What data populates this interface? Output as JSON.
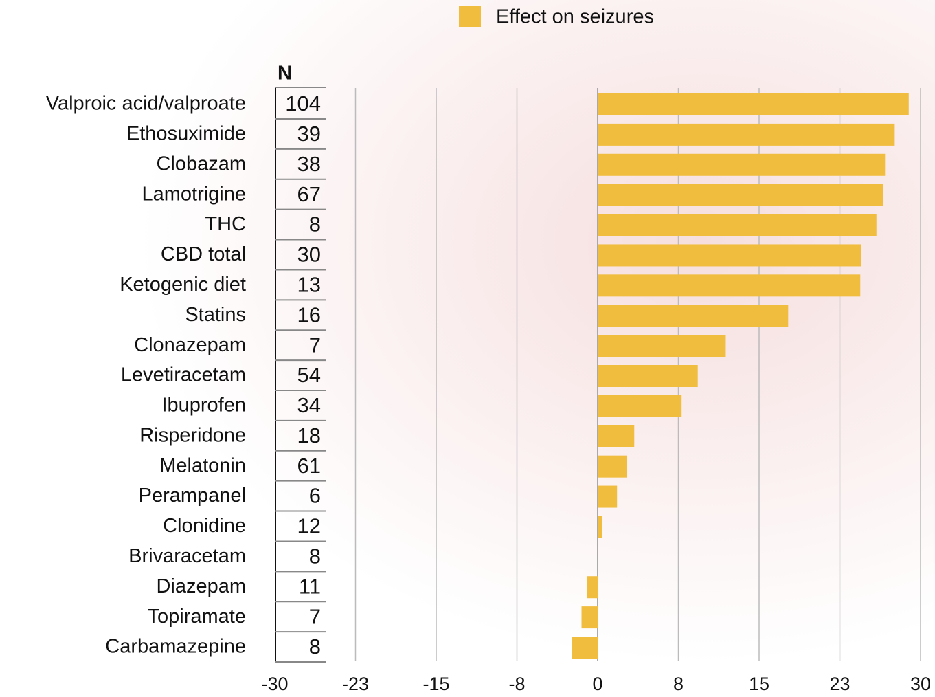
{
  "chart_data": {
    "type": "bar",
    "orientation": "horizontal",
    "legend_label": "Effect on seizures",
    "color": "#f0bd3e",
    "categories": [
      "Valproic acid/valproate",
      "Ethosuximide",
      "Clobazam",
      "Lamotrigine",
      "THC",
      "CBD total",
      "Ketogenic diet",
      "Statins",
      "Clonazepam",
      "Levetiracetam",
      "Ibuprofen",
      "Risperidone",
      "Melatonin",
      "Perampanel",
      "Clonidine",
      "Brivaracetam",
      "Diazepam",
      "Topiramate",
      "Carbamazepine"
    ],
    "values": [
      28.9,
      27.6,
      26.7,
      26.5,
      25.9,
      24.5,
      24.4,
      17.7,
      11.9,
      9.3,
      7.8,
      3.4,
      2.7,
      1.8,
      0.4,
      0,
      -1.0,
      -1.5,
      -2.4
    ],
    "n_header": "N",
    "n_values": [
      104,
      39,
      38,
      67,
      8,
      30,
      13,
      16,
      7,
      54,
      34,
      18,
      61,
      6,
      12,
      8,
      11,
      7,
      8
    ],
    "xlim": [
      -30,
      30
    ],
    "xticks": [
      -30,
      {
        "value": -22.5,
        "label": "-23"
      },
      -15,
      {
        "value": -7.5,
        "label": "-8"
      },
      0,
      {
        "value": 7.5,
        "label": "8"
      },
      15,
      {
        "value": 22.5,
        "label": "23"
      },
      30
    ],
    "grid": true
  }
}
